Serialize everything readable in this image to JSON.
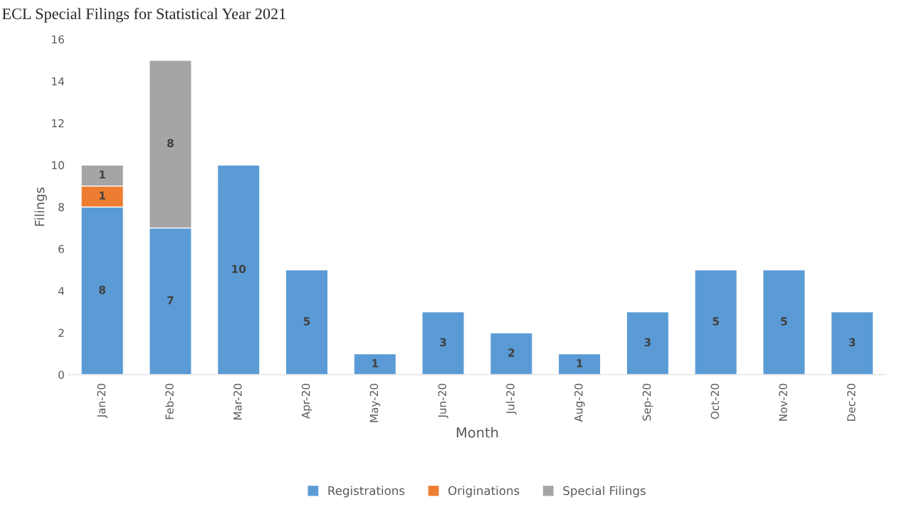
{
  "chart_data": {
    "type": "bar",
    "title": "ECL Special Filings for Statistical Year 2021",
    "xlabel": "Month",
    "ylabel": "Filings",
    "categories": [
      "Jan-20",
      "Feb-20",
      "Mar-20",
      "Apr-20",
      "May-20",
      "Jun-20",
      "Jul-20",
      "Aug-20",
      "Sep-20",
      "Oct-20",
      "Nov-20",
      "Dec-20"
    ],
    "series": [
      {
        "name": "Registrations",
        "color": "#5b9bd5",
        "values": [
          8,
          7,
          10,
          5,
          1,
          3,
          2,
          1,
          3,
          5,
          5,
          3
        ]
      },
      {
        "name": "Originations",
        "color": "#ed7d31",
        "values": [
          1,
          null,
          null,
          null,
          null,
          null,
          null,
          null,
          null,
          null,
          null,
          null
        ]
      },
      {
        "name": "Special Filings",
        "color": "#a5a5a5",
        "values": [
          1,
          8,
          null,
          null,
          null,
          null,
          null,
          null,
          null,
          null,
          null,
          null
        ]
      }
    ],
    "stacked": true,
    "data_labels": true,
    "ylim": [
      0,
      16
    ],
    "yticks": [
      0,
      2,
      4,
      6,
      8,
      10,
      12,
      14,
      16
    ],
    "grid": false,
    "legend": "bottom"
  }
}
